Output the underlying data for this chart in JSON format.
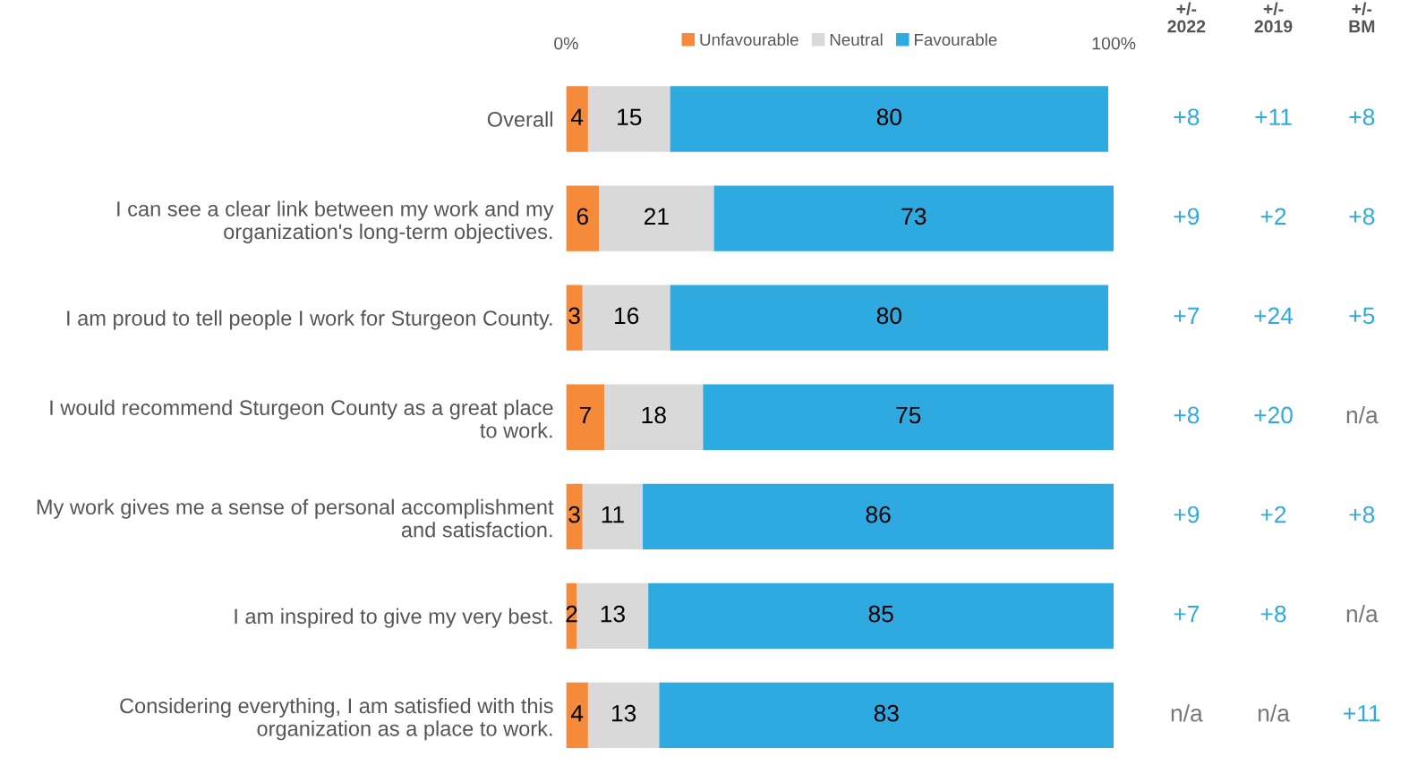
{
  "chart_data": {
    "type": "bar",
    "orientation": "horizontal",
    "stacked": true,
    "data_labels": true,
    "legend": "top",
    "categories": [
      "Overall",
      "I can see a clear link between my work and my\norganization's long-term objectives.",
      "I am proud to tell people I work for Sturgeon County.",
      "I would recommend Sturgeon County as a great place\nto work.",
      "My work gives me a sense of personal accomplishment\nand satisfaction.",
      "I am inspired to give my very best.",
      "Considering everything, I am satisfied with this\norganization as a place to work."
    ],
    "xlim": [
      0,
      100
    ],
    "xticks": [
      {
        "value": 0,
        "label": "0%"
      },
      {
        "value": 100,
        "label": "100%"
      }
    ],
    "tick_labels": "x",
    "series": [
      {
        "name": "Unfavourable",
        "color": "#f58a3a",
        "values": [
          4,
          6,
          3,
          7,
          3,
          2,
          4
        ]
      },
      {
        "name": "Neutral",
        "color": "#d9d9d9",
        "values": [
          15,
          21,
          16,
          18,
          11,
          13,
          13
        ]
      },
      {
        "name": "Favourable",
        "color": "#2eaae1",
        "values": [
          80,
          73,
          80,
          75,
          86,
          85,
          83
        ]
      }
    ],
    "annotations": [
      "+/-\n2022",
      "+/-\n2019",
      "+/-\nBM",
      "+8",
      "+11",
      "+8",
      "+9",
      "+2",
      "+8",
      "+7",
      "+24",
      "+5",
      "+8",
      "+20",
      "n/a",
      "+9",
      "+2",
      "+8",
      "+7",
      "+8",
      "n/a",
      "n/a",
      "n/a",
      "+11"
    ]
  }
}
